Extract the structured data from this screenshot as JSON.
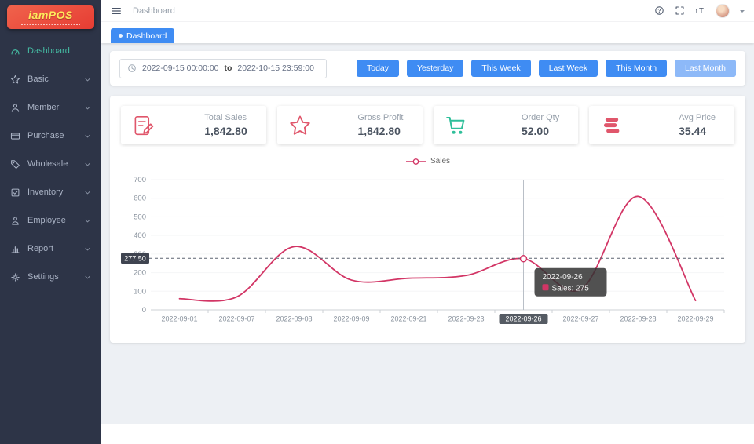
{
  "sidebar": {
    "logo_title": "iamPOS",
    "items": [
      {
        "label": "Dashboard",
        "icon": "dashboard-icon",
        "active": true,
        "has_children": false
      },
      {
        "label": "Basic",
        "icon": "star-icon",
        "active": false,
        "has_children": true
      },
      {
        "label": "Member",
        "icon": "user-icon",
        "active": false,
        "has_children": true
      },
      {
        "label": "Purchase",
        "icon": "credit-card-icon",
        "active": false,
        "has_children": true
      },
      {
        "label": "Wholesale",
        "icon": "tag-icon",
        "active": false,
        "has_children": true
      },
      {
        "label": "Inventory",
        "icon": "clipboard-icon",
        "active": false,
        "has_children": true
      },
      {
        "label": "Employee",
        "icon": "person-icon",
        "active": false,
        "has_children": true
      },
      {
        "label": "Report",
        "icon": "bar-chart-icon",
        "active": false,
        "has_children": true
      },
      {
        "label": "Settings",
        "icon": "gear-icon",
        "active": false,
        "has_children": true
      }
    ]
  },
  "header": {
    "breadcrumb": "Dashboard",
    "icons": [
      "hamburger-icon",
      "help-icon",
      "fullscreen-icon",
      "font-size-icon"
    ]
  },
  "tabs": [
    {
      "label": "Dashboard",
      "active": true
    }
  ],
  "filters": {
    "date_from": "2022-09-15 00:00:00",
    "date_separator": "to",
    "date_to": "2022-10-15 23:59:00",
    "buttons": [
      {
        "label": "Today",
        "active": false
      },
      {
        "label": "Yesterday",
        "active": false
      },
      {
        "label": "This Week",
        "active": false
      },
      {
        "label": "Last Week",
        "active": false
      },
      {
        "label": "This Month",
        "active": false
      },
      {
        "label": "Last Month",
        "active": true
      }
    ]
  },
  "stats": [
    {
      "label": "Total Sales",
      "value": "1,842.80",
      "icon": "edit-document-icon",
      "color": "#e0566b"
    },
    {
      "label": "Gross Profit",
      "value": "1,842.80",
      "icon": "star-outline-icon",
      "color": "#e0566b"
    },
    {
      "label": "Order Qty",
      "value": "52.00",
      "icon": "cart-icon",
      "color": "#2fbf9a"
    },
    {
      "label": "Avg Price",
      "value": "35.44",
      "icon": "layers-icon",
      "color": "#e0566b"
    }
  ],
  "chart_data": {
    "type": "line",
    "title": "",
    "xlabel": "",
    "ylabel": "",
    "legend": [
      "Sales"
    ],
    "legend_position": "top",
    "grid": false,
    "categories": [
      "2022-09-01",
      "2022-09-07",
      "2022-09-08",
      "2022-09-09",
      "2022-09-21",
      "2022-09-23",
      "2022-09-26",
      "2022-09-27",
      "2022-09-28",
      "2022-09-29"
    ],
    "series": [
      {
        "name": "Sales",
        "color": "#d23565",
        "values": [
          60,
          70,
          340,
          160,
          170,
          185,
          275,
          110,
          610,
          50
        ]
      }
    ],
    "ylim": [
      0,
      700
    ],
    "y_ticks": [
      0,
      100,
      200,
      300,
      400,
      500,
      600,
      700
    ],
    "marker_line_value": 277.5,
    "marker_line_label": "277.50",
    "highlight_category": "2022-09-26",
    "tooltip": {
      "title": "2022-09-26",
      "series": "Sales",
      "value": "275"
    }
  }
}
